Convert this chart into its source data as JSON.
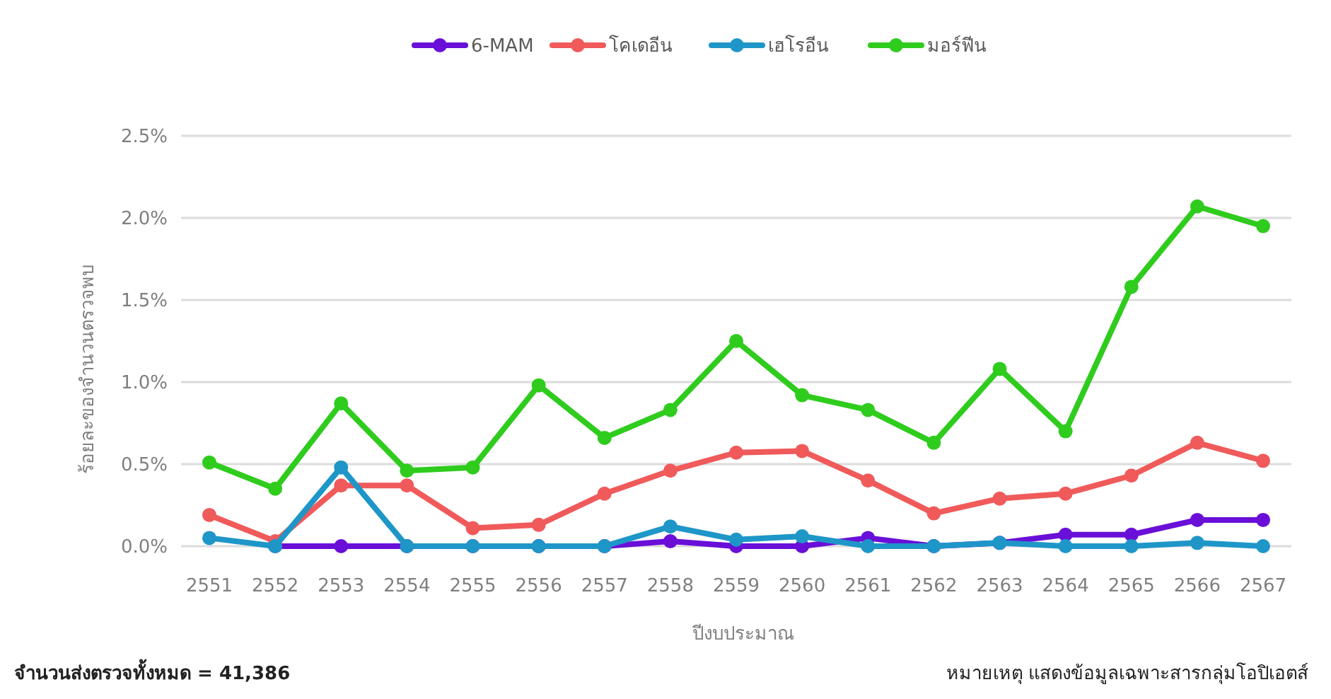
{
  "chart_data": {
    "type": "line",
    "xlabel": "ปีงบประมาณ",
    "ylabel": "ร้อยละของจำนวนตรวจพบ",
    "categories": [
      "2551",
      "2552",
      "2553",
      "2554",
      "2555",
      "2556",
      "2557",
      "2558",
      "2559",
      "2560",
      "2561",
      "2562",
      "2563",
      "2564",
      "2565",
      "2566",
      "2567"
    ],
    "series": [
      {
        "name": "6-MAM",
        "color": "#6a0fd8",
        "values": [
          null,
          0,
          0,
          0,
          0,
          0,
          0,
          0.03,
          0,
          0,
          0.05,
          0,
          0.02,
          0.07,
          0.07,
          0.16,
          0.16
        ]
      },
      {
        "name": "โคเดอีน",
        "color": "#f05a5a",
        "values": [
          0.19,
          0.03,
          0.37,
          0.37,
          0.11,
          0.13,
          0.32,
          0.46,
          0.57,
          0.58,
          0.4,
          0.2,
          0.29,
          0.32,
          0.43,
          0.63,
          0.52
        ]
      },
      {
        "name": "เฮโรอีน",
        "color": "#1e96c8",
        "values": [
          0.05,
          0,
          0.48,
          0,
          0,
          0,
          0,
          0.12,
          0.04,
          0.06,
          0,
          0,
          0.02,
          0,
          0,
          0.02,
          0
        ]
      },
      {
        "name": "มอร์ฟีน",
        "color": "#2fcc1e",
        "values": [
          0.51,
          0.35,
          0.87,
          0.46,
          0.48,
          0.98,
          0.66,
          0.83,
          1.25,
          0.92,
          0.83,
          0.63,
          1.08,
          0.7,
          1.58,
          2.07,
          1.95
        ]
      }
    ],
    "ylim": [
      0,
      2.5
    ],
    "yticks": [
      {
        "value": 0,
        "label": "0.0%"
      },
      {
        "value": 0.5,
        "label": "0.5%"
      },
      {
        "value": 1,
        "label": "1.0%"
      },
      {
        "value": 1.5,
        "label": "1.5%"
      },
      {
        "value": 2,
        "label": "2.0%"
      },
      {
        "value": 2.5,
        "label": "2.5%"
      }
    ],
    "grid": "y",
    "legend": "top",
    "marker": "circle",
    "line_style": "solid",
    "annotations": [
      "จำนวนส่งตรวจทั้งหมด = 41,386",
      "หมายเหตุ แสดงข้อมูลเฉพาะสารกลุ่มโอปิเอตส์"
    ]
  }
}
